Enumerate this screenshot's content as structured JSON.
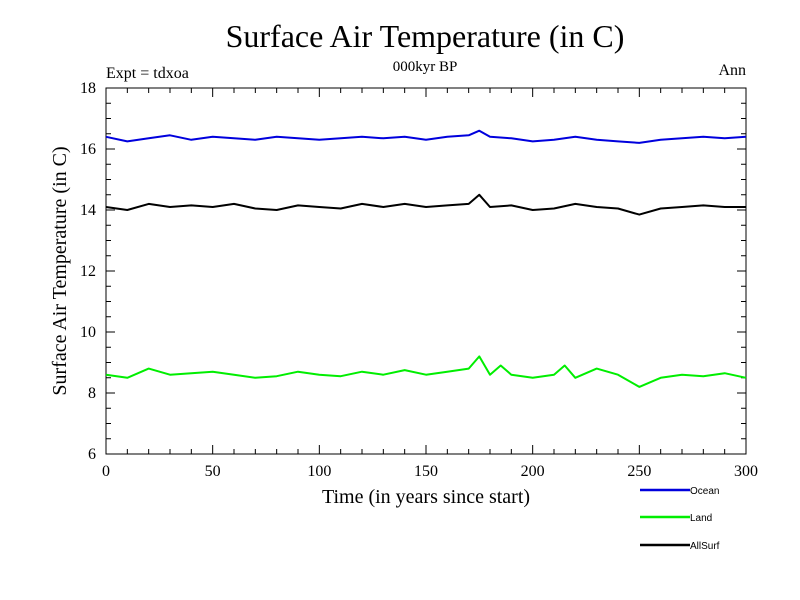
{
  "chart_data": {
    "type": "line",
    "title": "Surface Air Temperature (in C)",
    "subtitle": "000kyr BP",
    "left_label": "Expt = tdxoa",
    "right_label": "Ann",
    "xlabel": "Time (in years since start)",
    "ylabel": "Surface Air Temperature (in C)",
    "xlim": [
      0,
      300
    ],
    "ylim": [
      6,
      18
    ],
    "x_ticks": [
      "0",
      "50",
      "100",
      "150",
      "200",
      "250",
      "300"
    ],
    "y_ticks": [
      "6",
      "8",
      "10",
      "12",
      "14",
      "16",
      "18"
    ],
    "grid": false,
    "legend_position": "bottom-right",
    "series": [
      {
        "name": "Ocean",
        "color": "#0000dd",
        "x": [
          0,
          10,
          20,
          30,
          40,
          50,
          60,
          70,
          80,
          90,
          100,
          110,
          120,
          130,
          140,
          150,
          160,
          170,
          175,
          180,
          190,
          200,
          210,
          220,
          230,
          240,
          250,
          260,
          270,
          280,
          290,
          300
        ],
        "values": [
          16.4,
          16.25,
          16.35,
          16.45,
          16.3,
          16.4,
          16.35,
          16.3,
          16.4,
          16.35,
          16.3,
          16.35,
          16.4,
          16.35,
          16.4,
          16.3,
          16.4,
          16.45,
          16.6,
          16.4,
          16.35,
          16.25,
          16.3,
          16.4,
          16.3,
          16.25,
          16.2,
          16.3,
          16.35,
          16.4,
          16.35,
          16.4
        ]
      },
      {
        "name": "Land",
        "color": "#00ee00",
        "x": [
          0,
          10,
          20,
          30,
          40,
          50,
          60,
          70,
          80,
          90,
          100,
          110,
          120,
          130,
          140,
          150,
          160,
          170,
          175,
          180,
          185,
          190,
          200,
          210,
          215,
          220,
          230,
          240,
          250,
          260,
          270,
          280,
          290,
          300
        ],
        "values": [
          8.6,
          8.5,
          8.8,
          8.6,
          8.65,
          8.7,
          8.6,
          8.5,
          8.55,
          8.7,
          8.6,
          8.55,
          8.7,
          8.6,
          8.75,
          8.6,
          8.7,
          8.8,
          9.2,
          8.6,
          8.9,
          8.6,
          8.5,
          8.6,
          8.9,
          8.5,
          8.8,
          8.6,
          8.2,
          8.5,
          8.6,
          8.55,
          8.65,
          8.5
        ]
      },
      {
        "name": "AllSurf",
        "color": "#000000",
        "x": [
          0,
          10,
          20,
          30,
          40,
          50,
          60,
          70,
          80,
          90,
          100,
          110,
          120,
          130,
          140,
          150,
          160,
          170,
          175,
          180,
          190,
          200,
          210,
          220,
          230,
          240,
          250,
          260,
          270,
          280,
          290,
          300
        ],
        "values": [
          14.1,
          14.0,
          14.2,
          14.1,
          14.15,
          14.1,
          14.2,
          14.05,
          14.0,
          14.15,
          14.1,
          14.05,
          14.2,
          14.1,
          14.2,
          14.1,
          14.15,
          14.2,
          14.5,
          14.1,
          14.15,
          14.0,
          14.05,
          14.2,
          14.1,
          14.05,
          13.85,
          14.05,
          14.1,
          14.15,
          14.1,
          14.1
        ]
      }
    ]
  }
}
